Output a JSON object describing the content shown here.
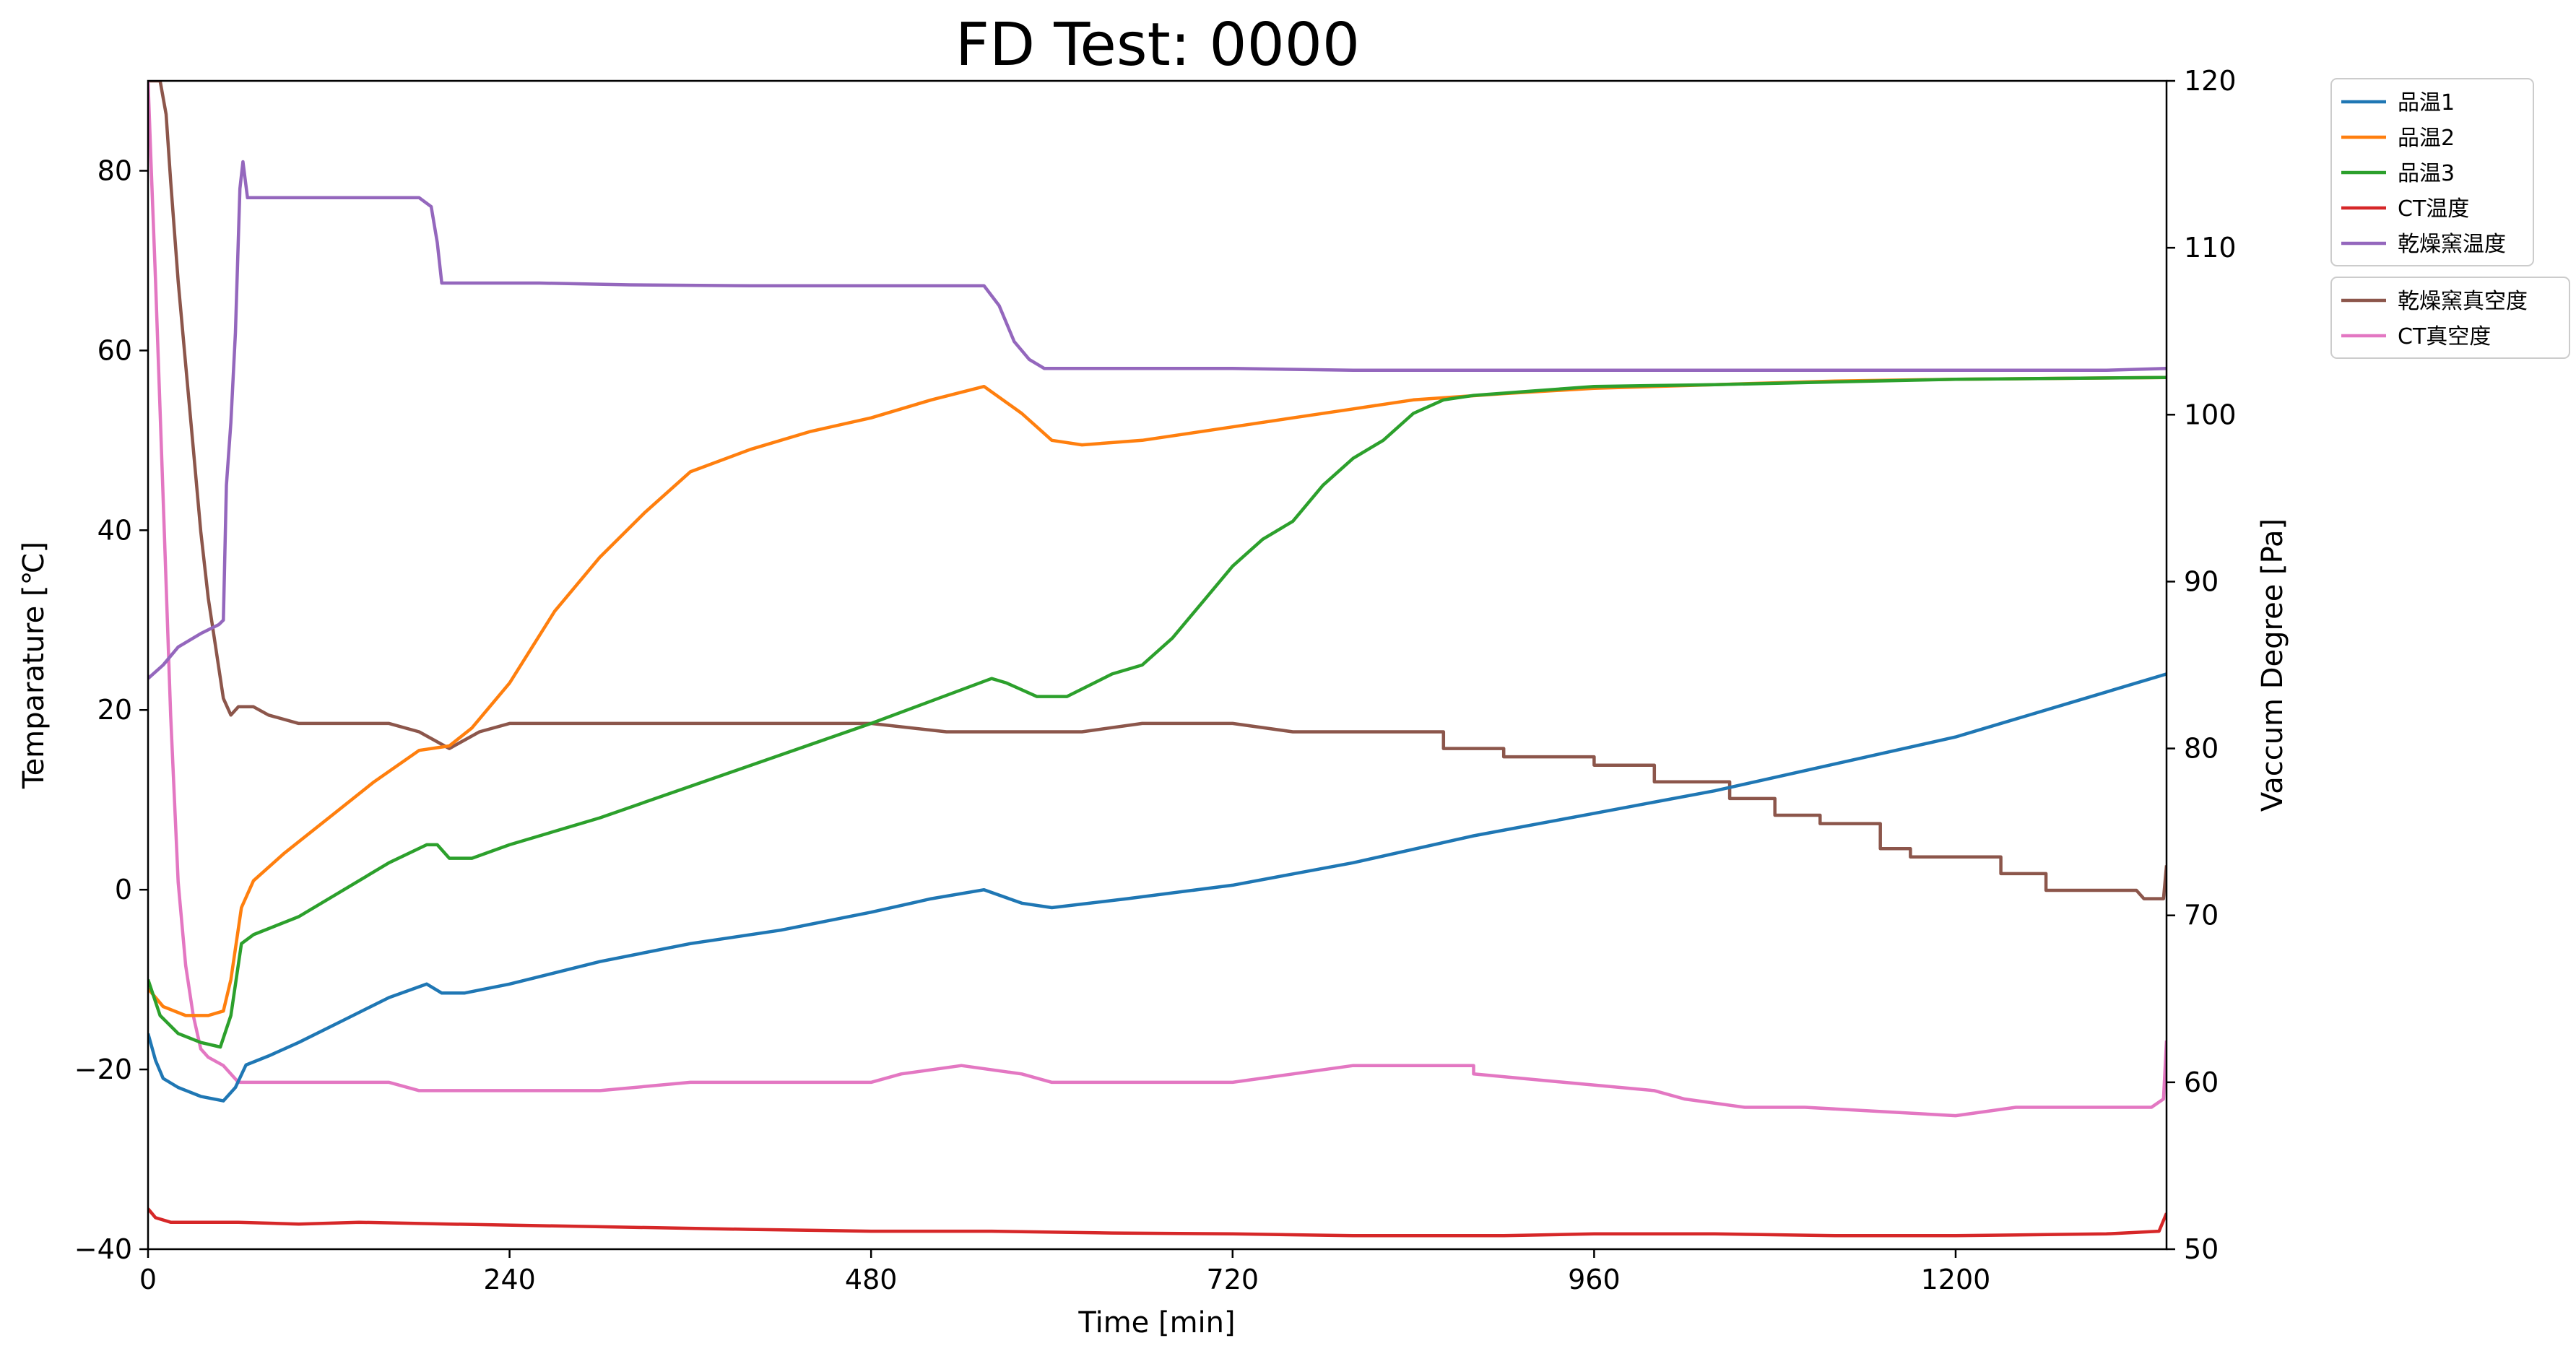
{
  "chart_data": {
    "type": "line",
    "title": "FD Test: 0000",
    "xlabel": "Time [min]",
    "ylabel_left": "Temparature [℃]",
    "ylabel_right": "Vaccum Degree [Pa]",
    "xlim": [
      0,
      1340
    ],
    "ylim_left": [
      -40,
      90
    ],
    "ylim_right": [
      50,
      120
    ],
    "xticks": [
      0,
      240,
      480,
      720,
      960,
      1200
    ],
    "yticks_left": [
      -40,
      -20,
      0,
      20,
      40,
      60,
      80
    ],
    "yticks_right": [
      50,
      60,
      70,
      80,
      90,
      100,
      110,
      120
    ],
    "grid": false,
    "legend_placement": "outside right, top",
    "temperature_series": [
      {
        "name": "品温1",
        "color": "#1f77b4",
        "axis": "left",
        "points": [
          [
            0,
            -16
          ],
          [
            5,
            -19
          ],
          [
            10,
            -21
          ],
          [
            20,
            -22
          ],
          [
            35,
            -23
          ],
          [
            50,
            -23.5
          ],
          [
            58,
            -22
          ],
          [
            65,
            -19.5
          ],
          [
            80,
            -18.5
          ],
          [
            100,
            -17
          ],
          [
            130,
            -14.5
          ],
          [
            160,
            -12
          ],
          [
            185,
            -10.5
          ],
          [
            195,
            -11.5
          ],
          [
            210,
            -11.5
          ],
          [
            240,
            -10.5
          ],
          [
            300,
            -8
          ],
          [
            360,
            -6
          ],
          [
            420,
            -4.5
          ],
          [
            480,
            -2.5
          ],
          [
            520,
            -1
          ],
          [
            555,
            0
          ],
          [
            580,
            -1.5
          ],
          [
            600,
            -2
          ],
          [
            650,
            -1
          ],
          [
            720,
            0.5
          ],
          [
            800,
            3
          ],
          [
            880,
            6
          ],
          [
            960,
            8.5
          ],
          [
            1040,
            11
          ],
          [
            1120,
            14
          ],
          [
            1200,
            17
          ],
          [
            1280,
            21
          ],
          [
            1340,
            24
          ]
        ]
      },
      {
        "name": "品温2",
        "color": "#ff7f0e",
        "axis": "left",
        "points": [
          [
            0,
            -11
          ],
          [
            10,
            -13
          ],
          [
            25,
            -14
          ],
          [
            40,
            -14
          ],
          [
            50,
            -13.5
          ],
          [
            55,
            -10
          ],
          [
            62,
            -2
          ],
          [
            70,
            1
          ],
          [
            90,
            4
          ],
          [
            120,
            8
          ],
          [
            150,
            12
          ],
          [
            180,
            15.5
          ],
          [
            200,
            16
          ],
          [
            215,
            18
          ],
          [
            240,
            23
          ],
          [
            270,
            31
          ],
          [
            300,
            37
          ],
          [
            330,
            42
          ],
          [
            360,
            46.5
          ],
          [
            400,
            49
          ],
          [
            440,
            51
          ],
          [
            480,
            52.5
          ],
          [
            520,
            54.5
          ],
          [
            555,
            56
          ],
          [
            580,
            53
          ],
          [
            600,
            50
          ],
          [
            620,
            49.5
          ],
          [
            660,
            50
          ],
          [
            720,
            51.5
          ],
          [
            760,
            52.5
          ],
          [
            800,
            53.5
          ],
          [
            840,
            54.5
          ],
          [
            900,
            55.2
          ],
          [
            960,
            55.8
          ],
          [
            1040,
            56.2
          ],
          [
            1120,
            56.6
          ],
          [
            1200,
            56.8
          ],
          [
            1340,
            57
          ]
        ]
      },
      {
        "name": "品温3",
        "color": "#2ca02c",
        "axis": "left",
        "points": [
          [
            0,
            -10
          ],
          [
            8,
            -14
          ],
          [
            20,
            -16
          ],
          [
            35,
            -17
          ],
          [
            48,
            -17.5
          ],
          [
            55,
            -14
          ],
          [
            62,
            -6
          ],
          [
            70,
            -5
          ],
          [
            100,
            -3
          ],
          [
            130,
            0
          ],
          [
            160,
            3
          ],
          [
            185,
            5
          ],
          [
            192,
            5
          ],
          [
            200,
            3.5
          ],
          [
            215,
            3.5
          ],
          [
            240,
            5
          ],
          [
            300,
            8
          ],
          [
            360,
            11.5
          ],
          [
            420,
            15
          ],
          [
            480,
            18.5
          ],
          [
            520,
            21
          ],
          [
            560,
            23.5
          ],
          [
            570,
            23
          ],
          [
            590,
            21.5
          ],
          [
            610,
            21.5
          ],
          [
            640,
            24
          ],
          [
            660,
            25
          ],
          [
            680,
            28
          ],
          [
            700,
            32
          ],
          [
            720,
            36
          ],
          [
            740,
            39
          ],
          [
            760,
            41
          ],
          [
            780,
            45
          ],
          [
            800,
            48
          ],
          [
            820,
            50
          ],
          [
            840,
            53
          ],
          [
            860,
            54.5
          ],
          [
            880,
            55
          ],
          [
            920,
            55.5
          ],
          [
            960,
            56
          ],
          [
            1040,
            56.2
          ],
          [
            1120,
            56.5
          ],
          [
            1200,
            56.8
          ],
          [
            1340,
            57
          ]
        ]
      },
      {
        "name": "CT温度",
        "color": "#d62728",
        "axis": "left",
        "points": [
          [
            0,
            -35.5
          ],
          [
            5,
            -36.5
          ],
          [
            15,
            -37
          ],
          [
            60,
            -37
          ],
          [
            100,
            -37.2
          ],
          [
            140,
            -37
          ],
          [
            200,
            -37.2
          ],
          [
            300,
            -37.5
          ],
          [
            400,
            -37.8
          ],
          [
            480,
            -38
          ],
          [
            560,
            -38
          ],
          [
            640,
            -38.2
          ],
          [
            720,
            -38.3
          ],
          [
            800,
            -38.5
          ],
          [
            900,
            -38.5
          ],
          [
            960,
            -38.3
          ],
          [
            1040,
            -38.3
          ],
          [
            1120,
            -38.5
          ],
          [
            1200,
            -38.5
          ],
          [
            1300,
            -38.3
          ],
          [
            1335,
            -38
          ],
          [
            1340,
            -36
          ]
        ]
      },
      {
        "name": "乾燥窯温度",
        "color": "#9467bd",
        "axis": "left",
        "points": [
          [
            0,
            23.5
          ],
          [
            10,
            25
          ],
          [
            20,
            27
          ],
          [
            35,
            28.5
          ],
          [
            47,
            29.5
          ],
          [
            50,
            30
          ],
          [
            52,
            45
          ],
          [
            55,
            52
          ],
          [
            58,
            62
          ],
          [
            61,
            78
          ],
          [
            63,
            81
          ],
          [
            66,
            77
          ],
          [
            75,
            77
          ],
          [
            100,
            77
          ],
          [
            140,
            77
          ],
          [
            180,
            77
          ],
          [
            188,
            76
          ],
          [
            192,
            72
          ],
          [
            195,
            67.5
          ],
          [
            200,
            67.5
          ],
          [
            260,
            67.5
          ],
          [
            320,
            67.3
          ],
          [
            400,
            67.2
          ],
          [
            480,
            67.2
          ],
          [
            550,
            67.2
          ],
          [
            555,
            67.2
          ],
          [
            565,
            65
          ],
          [
            575,
            61
          ],
          [
            585,
            59
          ],
          [
            595,
            58
          ],
          [
            640,
            58
          ],
          [
            720,
            58
          ],
          [
            800,
            57.8
          ],
          [
            900,
            57.8
          ],
          [
            1000,
            57.8
          ],
          [
            1100,
            57.8
          ],
          [
            1200,
            57.8
          ],
          [
            1300,
            57.8
          ],
          [
            1340,
            58
          ]
        ]
      }
    ],
    "vacuum_series": [
      {
        "name": "乾燥窯真空度",
        "color": "#8c564b",
        "axis": "right",
        "points": [
          [
            0,
            120
          ],
          [
            8,
            120
          ],
          [
            12,
            118
          ],
          [
            15,
            114
          ],
          [
            20,
            108
          ],
          [
            25,
            103
          ],
          [
            30,
            98
          ],
          [
            35,
            93
          ],
          [
            40,
            89
          ],
          [
            45,
            86
          ],
          [
            50,
            83
          ],
          [
            55,
            82
          ],
          [
            60,
            82.5
          ],
          [
            70,
            82.5
          ],
          [
            80,
            82
          ],
          [
            100,
            81.5
          ],
          [
            120,
            81.5
          ],
          [
            140,
            81.5
          ],
          [
            160,
            81.5
          ],
          [
            180,
            81
          ],
          [
            200,
            80
          ],
          [
            220,
            81
          ],
          [
            240,
            81.5
          ],
          [
            300,
            81.5
          ],
          [
            400,
            81.5
          ],
          [
            480,
            81.5
          ],
          [
            530,
            81
          ],
          [
            580,
            81
          ],
          [
            620,
            81
          ],
          [
            660,
            81.5
          ],
          [
            720,
            81.5
          ],
          [
            760,
            81
          ],
          [
            860,
            81
          ],
          [
            860,
            80
          ],
          [
            900,
            80
          ],
          [
            900,
            79.5
          ],
          [
            960,
            79.5
          ],
          [
            960,
            79
          ],
          [
            1000,
            79
          ],
          [
            1000,
            78
          ],
          [
            1050,
            78
          ],
          [
            1050,
            77
          ],
          [
            1080,
            77
          ],
          [
            1080,
            76
          ],
          [
            1110,
            76
          ],
          [
            1110,
            75.5
          ],
          [
            1150,
            75.5
          ],
          [
            1150,
            74
          ],
          [
            1170,
            74
          ],
          [
            1170,
            73.5
          ],
          [
            1230,
            73.5
          ],
          [
            1230,
            72.5
          ],
          [
            1260,
            72.5
          ],
          [
            1260,
            71.5
          ],
          [
            1320,
            71.5
          ],
          [
            1325,
            71
          ],
          [
            1338,
            71
          ],
          [
            1340,
            73
          ]
        ]
      },
      {
        "name": "CT真空度",
        "color": "#e377c2",
        "axis": "right",
        "points": [
          [
            0,
            120
          ],
          [
            2,
            115
          ],
          [
            5,
            108
          ],
          [
            10,
            95
          ],
          [
            15,
            82
          ],
          [
            20,
            72
          ],
          [
            25,
            67
          ],
          [
            30,
            64
          ],
          [
            35,
            62
          ],
          [
            40,
            61.5
          ],
          [
            50,
            61
          ],
          [
            60,
            60
          ],
          [
            80,
            60
          ],
          [
            120,
            60
          ],
          [
            160,
            60
          ],
          [
            180,
            59.5
          ],
          [
            260,
            59.5
          ],
          [
            300,
            59.5
          ],
          [
            360,
            60
          ],
          [
            480,
            60
          ],
          [
            500,
            60.5
          ],
          [
            540,
            61
          ],
          [
            580,
            60.5
          ],
          [
            600,
            60
          ],
          [
            640,
            60
          ],
          [
            680,
            60
          ],
          [
            720,
            60
          ],
          [
            760,
            60.5
          ],
          [
            800,
            61
          ],
          [
            860,
            61
          ],
          [
            880,
            61
          ],
          [
            880,
            60.5
          ],
          [
            940,
            60
          ],
          [
            1000,
            59.5
          ],
          [
            1020,
            59
          ],
          [
            1060,
            58.5
          ],
          [
            1100,
            58.5
          ],
          [
            1200,
            58
          ],
          [
            1240,
            58.5
          ],
          [
            1300,
            58.5
          ],
          [
            1330,
            58.5
          ],
          [
            1338,
            59
          ],
          [
            1340,
            62.5
          ]
        ]
      }
    ]
  }
}
